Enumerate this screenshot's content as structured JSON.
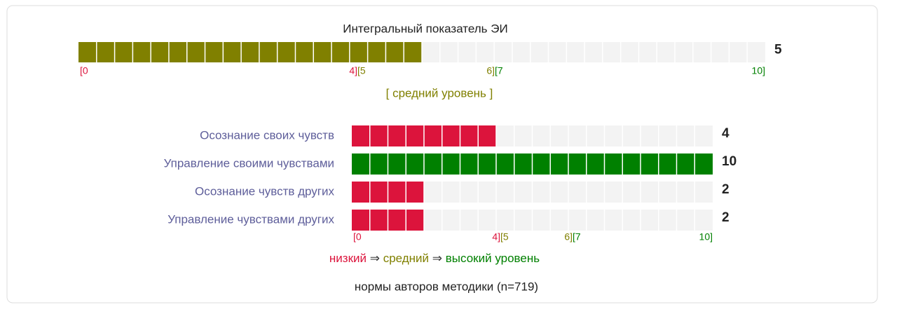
{
  "chart_data": {
    "type": "segmented-bar",
    "title": "Интегральный показатель ЭИ",
    "total": {
      "value": 5,
      "color": "#808000",
      "level_label": "[ средний уровень ]"
    },
    "xlim": [
      0,
      10
    ],
    "levels": [
      {
        "name": "низкий",
        "color": "#dc143c",
        "range": [
          0,
          4
        ],
        "labels": [
          "[0",
          "4]"
        ]
      },
      {
        "name": "средний",
        "color": "#808000",
        "range": [
          5,
          6
        ],
        "labels": [
          "[5",
          "6]"
        ]
      },
      {
        "name": "высокий уровень",
        "color": "#008000",
        "range": [
          7,
          10
        ],
        "labels": [
          "[7",
          "10]"
        ]
      }
    ],
    "legend_separator": "⇒",
    "categories": [
      "Осознание своих чувств",
      "Управление своими чувствами",
      "Осознание чувств других",
      "Управление чувствами других"
    ],
    "values": [
      4,
      10,
      2,
      2
    ],
    "colors": [
      "#dc143c",
      "#008000",
      "#dc143c",
      "#dc143c"
    ],
    "footnote": "нормы авторов методики (n=719)"
  }
}
